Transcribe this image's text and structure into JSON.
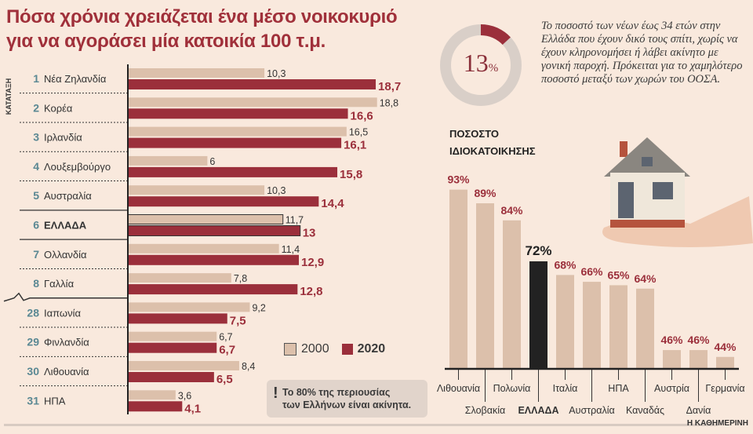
{
  "title_line1": "Πόσα χρόνια χρειάζεται ένα μέσο νοικοκυριό",
  "title_line2": "για να αγοράσει μία κατοικία 100 τ.μ.",
  "ranking_label": "ΚΑΤΑΤΑΞΗ",
  "donut": {
    "value": 13,
    "label": "13",
    "unit": "%",
    "fill_color": "#9b2f3b",
    "track_color": "#d9cfc8"
  },
  "blurb": "Το ποσοστό των νέων έως 34 ετών στην Ελλάδα που έχουν δικό τους σπίτι, χωρίς να έχουν κληρονομήσει ή λάβει ακίνητο με γονική παροχή. Πρόκειται για το χαμηλότερο ποσοστό μεταξύ των χωρών του ΟΟΣΑ.",
  "note": {
    "icon": "exclamation-icon",
    "mark": "!",
    "line1": "Το 80% της περιουσίας",
    "line2": "των Ελλήνων είναι ακίνητα."
  },
  "footer": "Η ΚΑΘΗΜΕΡΙΝΗ",
  "chart_data": [
    {
      "type": "bar",
      "orientation": "horizontal",
      "title": "Πόσα χρόνια χρειάζεται ένα μέσο νοικοκυριό για να αγοράσει μία κατοικία 100 τ.μ.",
      "ranks": [
        "1",
        "2",
        "3",
        "4",
        "5",
        "6",
        "7",
        "8",
        "28",
        "29",
        "30",
        "31"
      ],
      "categories": [
        "Νέα Ζηλανδία",
        "Κορέα",
        "Ιρλανδία",
        "Λουξεμβούργο",
        "Αυστραλία",
        "ΕΛΛΑΔΑ",
        "Ολλανδία",
        "Γαλλία",
        "Ιαπωνία",
        "Φινλανδία",
        "Λιθουανία",
        "ΗΠΑ"
      ],
      "highlight": "ΕΛΛΑΔΑ",
      "series": [
        {
          "name": "2000",
          "color": "#dcc0ab",
          "values": [
            10.3,
            18.8,
            16.5,
            6,
            10.3,
            11.7,
            11.4,
            7.8,
            9.2,
            6.7,
            8.4,
            3.6
          ],
          "labels": [
            "10,3",
            "18,8",
            "16,5",
            "6",
            "10,3",
            "11,7",
            "11,4",
            "7,8",
            "9,2",
            "6,7",
            "8,4",
            "3,6"
          ]
        },
        {
          "name": "2020",
          "color": "#9b2f3b",
          "values": [
            18.7,
            16.6,
            16.1,
            15.8,
            14.4,
            13,
            12.9,
            12.8,
            7.5,
            6.7,
            6.5,
            4.1
          ],
          "labels": [
            "18,7",
            "16,6",
            "16,1",
            "15,8",
            "14,4",
            "13",
            "12,9",
            "12,8",
            "7,5",
            "6,7",
            "6,5",
            "4,1"
          ]
        }
      ],
      "legend": "bottom-right",
      "axis_break_after": "8"
    },
    {
      "type": "bar",
      "title": "ΠΟΣΟΣΤΟ ΙΔΙΟΚΑΤΟΙΚΗΣΗΣ",
      "title_line1": "ΠΟΣΟΣΤΟ",
      "title_line2": "ΙΔΙΟΚΑΤΟΙΚΗΣΗΣ",
      "categories": [
        "Λιθουανία",
        "Σλοβακία",
        "Πολωνία",
        "ΕΛΛΑΔΑ",
        "Ιταλία",
        "Αυστραλία",
        "ΗΠΑ",
        "Καναδάς",
        "Αυστρία",
        "Δανία",
        "Γερμανία"
      ],
      "values": [
        93,
        89,
        84,
        72,
        68,
        66,
        65,
        64,
        46,
        46,
        44
      ],
      "labels": [
        "93%",
        "89%",
        "84%",
        "72%",
        "68%",
        "66%",
        "65%",
        "64%",
        "46%",
        "46%",
        "44%"
      ],
      "unit": "%",
      "highlight": "ΕΛΛΑΔΑ",
      "bar_color": "#dcc0ab",
      "highlight_color": "#222222",
      "label_color": "#9b2f3b",
      "ylim": [
        40,
        100
      ]
    }
  ]
}
